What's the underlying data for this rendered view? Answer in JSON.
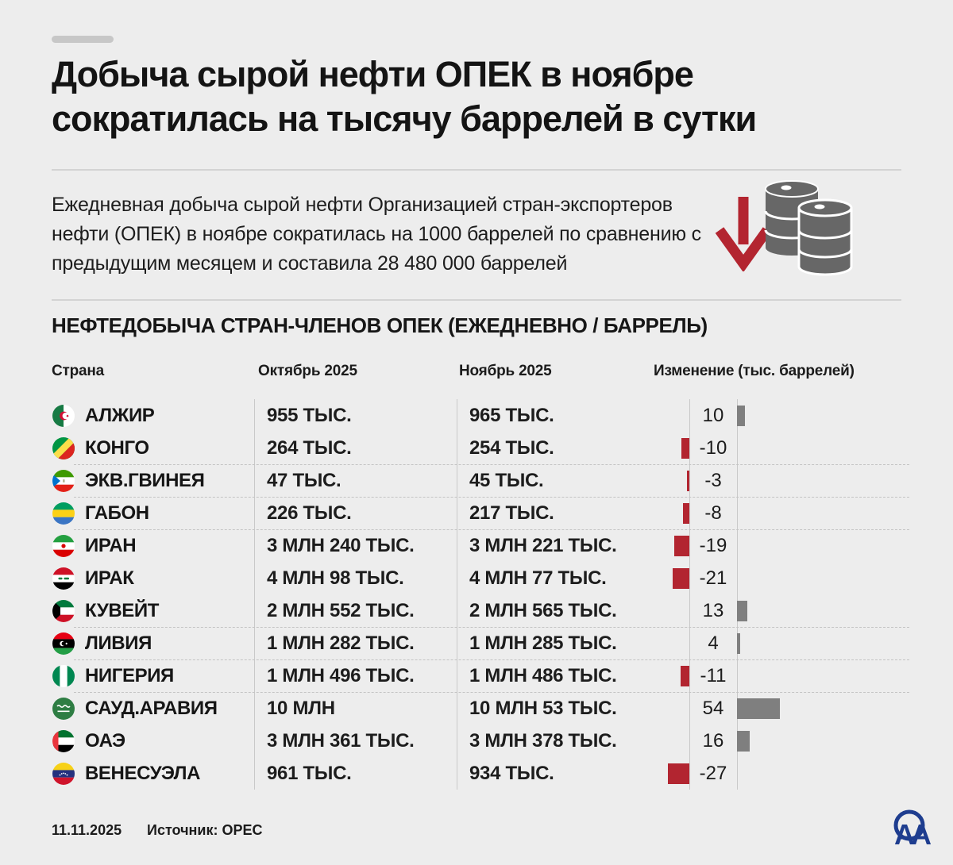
{
  "header": {
    "title": "Добыча сырой нефти ОПЕК в ноябре\nсократилась на тысячу баррелей в сутки",
    "lead": "Ежедневная добыча сырой нефти Организацией стран-экспортеров\nнефти (ОПЕК) в ноябре сократилась на 1000 баррелей по сравнению с\nпредыдущим месяцем и составила 28 480 000 баррелей",
    "icons": [
      "down-arrow-icon",
      "oil-barrels-icon"
    ]
  },
  "table": {
    "section_title": "НЕФТЕДОБЫЧА СТРАН-ЧЛЕНОВ ОПЕК (ЕЖЕДНЕВНО / БАРРЕЛЬ)",
    "columns": [
      "Страна",
      "Октябрь 2025",
      "Ноябрь 2025",
      "Изменение (тыс. баррелей)"
    ],
    "rows": [
      {
        "country": "АЛЖИР",
        "flag": "flag-algeria",
        "october": "955 ТЫС.",
        "november": "965 ТЫС.",
        "change": 10
      },
      {
        "country": "КОНГО",
        "flag": "flag-congo",
        "october": "264 ТЫС.",
        "november": "254 ТЫС.",
        "change": -10
      },
      {
        "country": "ЭКВ.ГВИНЕЯ",
        "flag": "flag-equatorial-guinea",
        "october": "47 ТЫС.",
        "november": "45 ТЫС.",
        "change": -3
      },
      {
        "country": "ГАБОН",
        "flag": "flag-gabon",
        "october": "226 ТЫС.",
        "november": "217 ТЫС.",
        "change": -8
      },
      {
        "country": "ИРАН",
        "flag": "flag-iran",
        "october": "3 МЛН 240 ТЫС.",
        "november": "3 МЛН 221 ТЫС.",
        "change": -19
      },
      {
        "country": "ИРАК",
        "flag": "flag-iraq",
        "october": "4 МЛН 98 ТЫС.",
        "november": "4 МЛН 77 ТЫС.",
        "change": -21
      },
      {
        "country": "КУВЕЙТ",
        "flag": "flag-kuwait",
        "october": "2 МЛН 552 ТЫС.",
        "november": "2 МЛН 565 ТЫС.",
        "change": 13
      },
      {
        "country": "ЛИВИЯ",
        "flag": "flag-libya",
        "october": "1 МЛН 282 ТЫС.",
        "november": "1 МЛН 285 ТЫС.",
        "change": 4
      },
      {
        "country": "НИГЕРИЯ",
        "flag": "flag-nigeria",
        "october": "1 МЛН 496 ТЫС.",
        "november": "1 МЛН 486 ТЫС.",
        "change": -11
      },
      {
        "country": "САУД.АРАВИЯ",
        "flag": "flag-saudi-arabia",
        "october": "10 МЛН",
        "november": "10 МЛН 53 ТЫС.",
        "change": 54
      },
      {
        "country": "ОАЭ",
        "flag": "flag-uae",
        "october": "3 МЛН 361 ТЫС.",
        "november": "3 МЛН 378 ТЫС.",
        "change": 16
      },
      {
        "country": "ВЕНЕСУЭЛА",
        "flag": "flag-venezuela",
        "october": "961 ТЫС.",
        "november": "934 ТЫС.",
        "change": -27
      }
    ]
  },
  "footer": {
    "date": "11.11.2025",
    "source": "Источник: OPEC",
    "logo_text": "AA",
    "logo_name": "anadolu-agency-logo"
  },
  "colors": {
    "background": "#ededed",
    "negative_bar": "#b22530",
    "positive_bar": "#7f7f7f",
    "accent_red": "#b32530",
    "barrel_gray": "#676767",
    "logo_blue": "#1e3d8f"
  },
  "chart_data": {
    "type": "table",
    "title": "НЕФТЕДОБЫЧА СТРАН-ЧЛЕНОВ ОПЕК (ЕЖЕДНЕВНО / БАРРЕЛЬ)",
    "columns": [
      "Страна",
      "Октябрь 2025",
      "Ноябрь 2025",
      "Изменение (тыс. баррелей)"
    ],
    "categories": [
      "АЛЖИР",
      "КОНГО",
      "ЭКВ.ГВИНЕЯ",
      "ГАБОН",
      "ИРАН",
      "ИРАК",
      "КУВЕЙТ",
      "ЛИВИЯ",
      "НИГЕРИЯ",
      "САУД.АРАВИЯ",
      "ОАЭ",
      "ВЕНЕСУЭЛА"
    ],
    "series": [
      {
        "name": "Октябрь 2025",
        "unit": "баррелей в сутки",
        "values": [
          955000,
          264000,
          47000,
          226000,
          3240000,
          4098000,
          2552000,
          1282000,
          1496000,
          10000000,
          3361000,
          961000
        ]
      },
      {
        "name": "Ноябрь 2025",
        "unit": "баррелей в сутки",
        "values": [
          965000,
          254000,
          45000,
          217000,
          3221000,
          4077000,
          2565000,
          1285000,
          1486000,
          10053000,
          3378000,
          934000
        ]
      },
      {
        "name": "Изменение (тыс. баррелей)",
        "type": "bar",
        "values": [
          10,
          -10,
          -3,
          -8,
          -19,
          -21,
          13,
          4,
          -11,
          54,
          16,
          -27
        ],
        "negative_color": "#b22530",
        "positive_color": "#7f7f7f"
      }
    ],
    "annotations": [
      "Добыча ОПЕК в ноябре: 28 480 000 баррелей в сутки, на 1000 баррелей меньше, чем месяцем ранее"
    ]
  }
}
